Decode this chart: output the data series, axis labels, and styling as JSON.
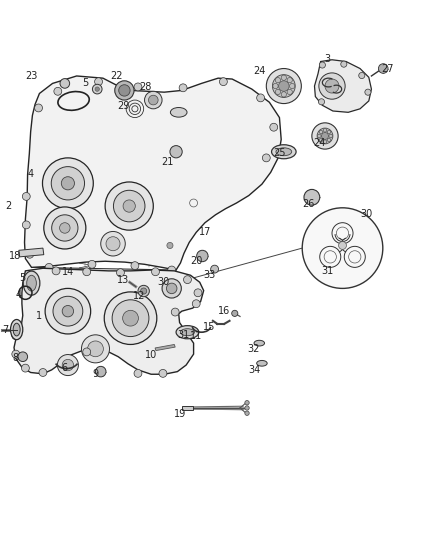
{
  "background_color": "#ffffff",
  "fig_width": 4.38,
  "fig_height": 5.33,
  "dpi": 100,
  "label_fontsize": 7,
  "label_color": "#222222"
}
